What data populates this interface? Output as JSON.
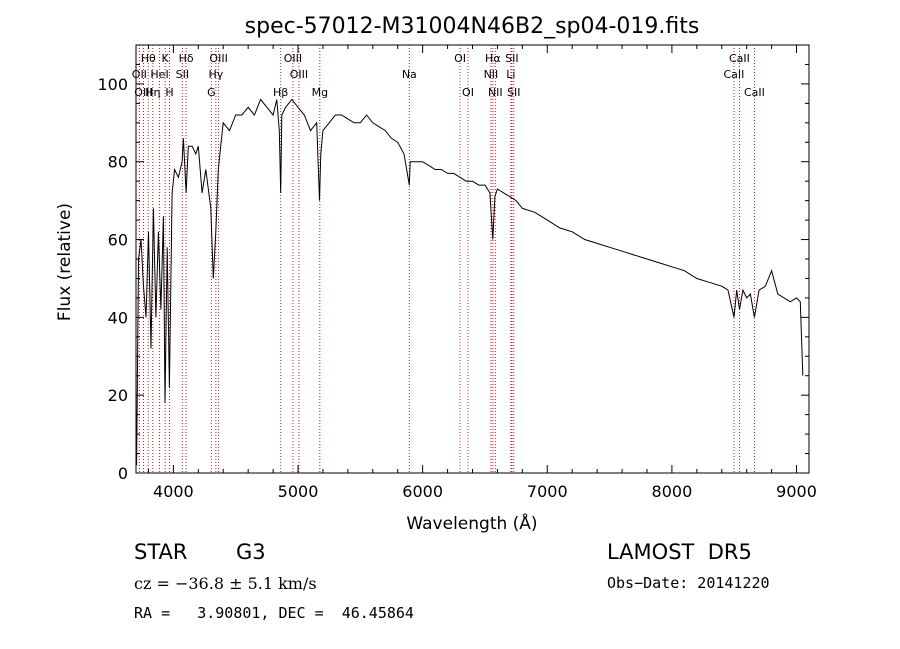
{
  "chart_data": {
    "type": "line",
    "title": "spec-57012-M31004N46B2_sp04-019.fits",
    "xlabel": "Wavelength (Å)",
    "ylabel": "Flux (relative)",
    "xlim": [
      3700,
      9100
    ],
    "ylim": [
      0,
      110
    ],
    "xticks": [
      4000,
      5000,
      6000,
      7000,
      8000,
      9000
    ],
    "yticks": [
      0,
      20,
      40,
      60,
      80,
      100
    ],
    "grid": false,
    "series": [
      {
        "x": [
          3705,
          3720,
          3740,
          3760,
          3780,
          3800,
          3820,
          3840,
          3860,
          3880,
          3900,
          3920,
          3933,
          3950,
          3968,
          3990,
          4010,
          4040,
          4070,
          4080,
          4102,
          4120,
          4150,
          4180,
          4200,
          4230,
          4260,
          4300,
          4320,
          4340,
          4360,
          4380,
          4400,
          4450,
          4500,
          4550,
          4600,
          4650,
          4700,
          4750,
          4800,
          4830,
          4850,
          4861,
          4870,
          4900,
          4950,
          5000,
          5050,
          5100,
          5150,
          5172,
          5183,
          5200,
          5250,
          5300,
          5350,
          5400,
          5450,
          5500,
          5550,
          5600,
          5650,
          5700,
          5750,
          5800,
          5850,
          5893,
          5900,
          5950,
          6000,
          6050,
          6100,
          6150,
          6200,
          6250,
          6300,
          6350,
          6400,
          6450,
          6500,
          6540,
          6563,
          6580,
          6600,
          6650,
          6700,
          6750,
          6800,
          6900,
          7000,
          7100,
          7200,
          7300,
          7400,
          7500,
          7600,
          7700,
          7800,
          7900,
          8000,
          8100,
          8200,
          8300,
          8400,
          8450,
          8498,
          8520,
          8542,
          8570,
          8600,
          8630,
          8662,
          8700,
          8750,
          8800,
          8850,
          8900,
          8950,
          9000,
          9030,
          9050
        ],
        "y": [
          2,
          55,
          60,
          48,
          40,
          62,
          32,
          68,
          40,
          62,
          42,
          66,
          18,
          58,
          22,
          72,
          78,
          76,
          80,
          86,
          72,
          84,
          84,
          82,
          84,
          72,
          78,
          68,
          50,
          62,
          78,
          84,
          90,
          88,
          92,
          92,
          94,
          92,
          96,
          94,
          92,
          96,
          88,
          72,
          92,
          94,
          96,
          94,
          92,
          88,
          90,
          70,
          82,
          88,
          90,
          92,
          92,
          91,
          90,
          90,
          92,
          90,
          89,
          88,
          86,
          85,
          82,
          74,
          80,
          80,
          80,
          79,
          78,
          78,
          77,
          77,
          76,
          75,
          75,
          74,
          74,
          72,
          60,
          71,
          73,
          72,
          71,
          70,
          68,
          67,
          65,
          63,
          62,
          60,
          59,
          58,
          57,
          56,
          55,
          54,
          53,
          52,
          50,
          49,
          48,
          47,
          40,
          47,
          42,
          47,
          45,
          46,
          40,
          47,
          48,
          52,
          46,
          45,
          44,
          45,
          44,
          25
        ]
      }
    ],
    "lines": [
      {
        "label": "Hθ",
        "x": 3798,
        "row": 1
      },
      {
        "label": "OII",
        "x": 3727,
        "row": 2
      },
      {
        "label": "OIII",
        "x": 3760,
        "row": 3
      },
      {
        "label": "Hη",
        "x": 3835,
        "row": 3
      },
      {
        "label": "K",
        "x": 3934,
        "row": 1
      },
      {
        "label": "HeI",
        "x": 3889,
        "row": 2
      },
      {
        "label": "H",
        "x": 3969,
        "row": 3
      },
      {
        "label": "Hδ",
        "x": 4102,
        "row": 1
      },
      {
        "label": "SII",
        "x": 4072,
        "row": 2
      },
      {
        "label": "OIII",
        "x": 4363,
        "row": 1
      },
      {
        "label": "Hγ",
        "x": 4341,
        "row": 2
      },
      {
        "label": "G",
        "x": 4305,
        "row": 3
      },
      {
        "label": "OIII",
        "x": 4959,
        "row": 1
      },
      {
        "label": "OIII",
        "x": 5007,
        "row": 2
      },
      {
        "label": "Hβ",
        "x": 4861,
        "row": 3
      },
      {
        "label": "Mg",
        "x": 5175,
        "row": 3
      },
      {
        "label": "Na",
        "x": 5893,
        "row": 2
      },
      {
        "label": "OI",
        "x": 6300,
        "row": 1
      },
      {
        "label": "OI",
        "x": 6364,
        "row": 3
      },
      {
        "label": "Hα",
        "x": 6563,
        "row": 1
      },
      {
        "label": "NII",
        "x": 6548,
        "row": 2
      },
      {
        "label": "NII",
        "x": 6583,
        "row": 3
      },
      {
        "label": "SII",
        "x": 6716,
        "row": 1
      },
      {
        "label": "Li",
        "x": 6708,
        "row": 2
      },
      {
        "label": "SII",
        "x": 6731,
        "row": 3
      },
      {
        "label": "CaII",
        "x": 8542,
        "row": 1
      },
      {
        "label": "CaII",
        "x": 8498,
        "row": 2
      },
      {
        "label": "CaII",
        "x": 8662,
        "row": 3
      }
    ]
  },
  "info": {
    "class": "STAR",
    "subclass": "G3",
    "survey": "LAMOST  DR5",
    "cz": "cz = −36.8 ± 5.1 km/s",
    "obs_date": "Obs−Date: 20141220",
    "coords": "RA =   3.90801, DEC =  46.45864"
  },
  "colors": {
    "spectrum": "#000000",
    "line_markers": "#b22222",
    "text": "#000000"
  }
}
